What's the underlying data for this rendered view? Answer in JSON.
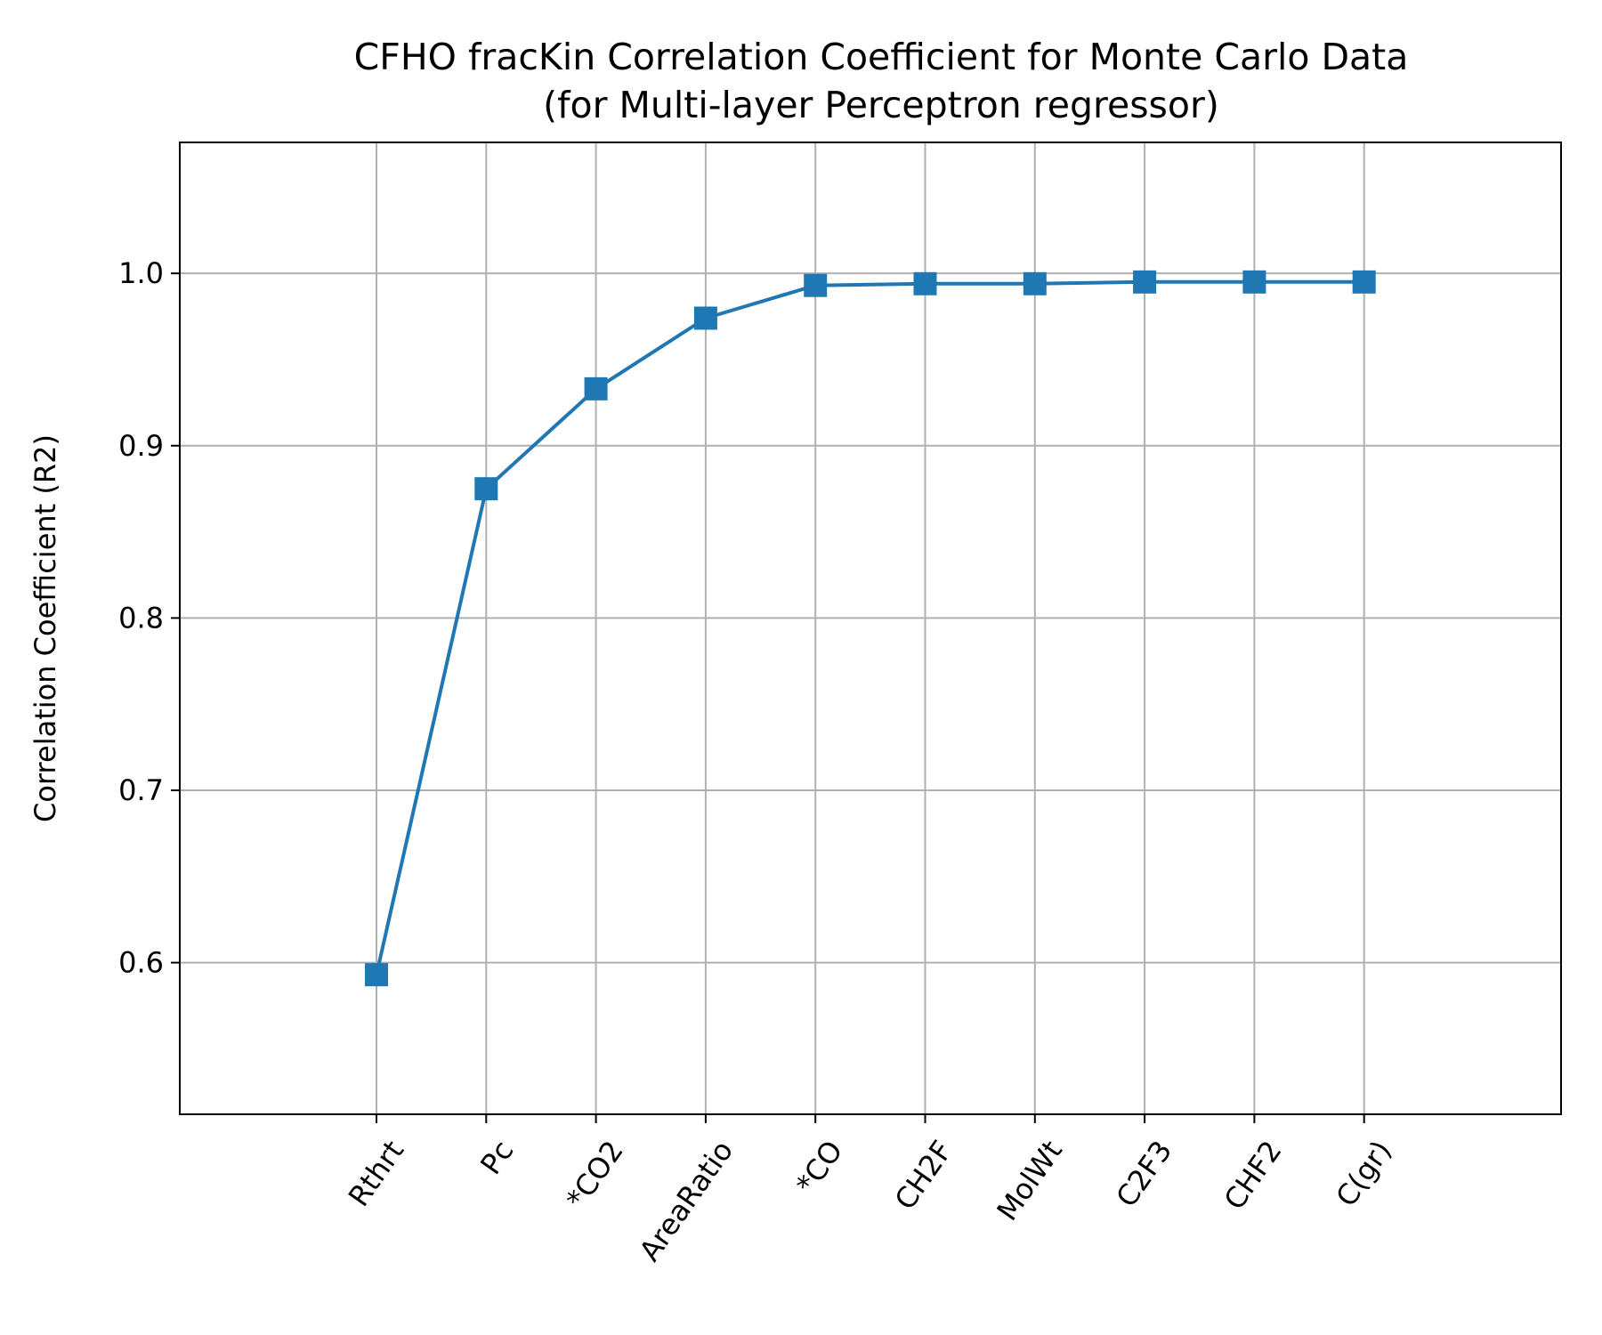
{
  "chart_data": {
    "type": "line",
    "title": "CFHO fracKin Correlation Coefficient for Monte Carlo Data",
    "subtitle": "(for Multi-layer Perceptron regressor)",
    "xlabel": "",
    "ylabel": "Correlation Coefficient (R2)",
    "categories": [
      "Rthrt",
      "Pc",
      "*CO2",
      "AreaRatio",
      "*CO",
      "CH2F",
      "MolWt",
      "C2F3",
      "CHF2",
      "C(gr)"
    ],
    "series": [
      {
        "values": [
          0.593,
          0.875,
          0.933,
          0.974,
          0.993,
          0.994,
          0.994,
          0.995,
          0.995,
          0.995
        ],
        "color": "#1f77b4",
        "marker": "square"
      }
    ],
    "ylim": [
      0.512,
      1.076
    ],
    "yticks": [
      0.6,
      0.7,
      0.8,
      0.9,
      1.0
    ],
    "ytick_labels": [
      "0.6",
      "0.7",
      "0.8",
      "0.9",
      "1.0"
    ],
    "x_tick_rotation": 55,
    "grid": true,
    "legend": false
  }
}
